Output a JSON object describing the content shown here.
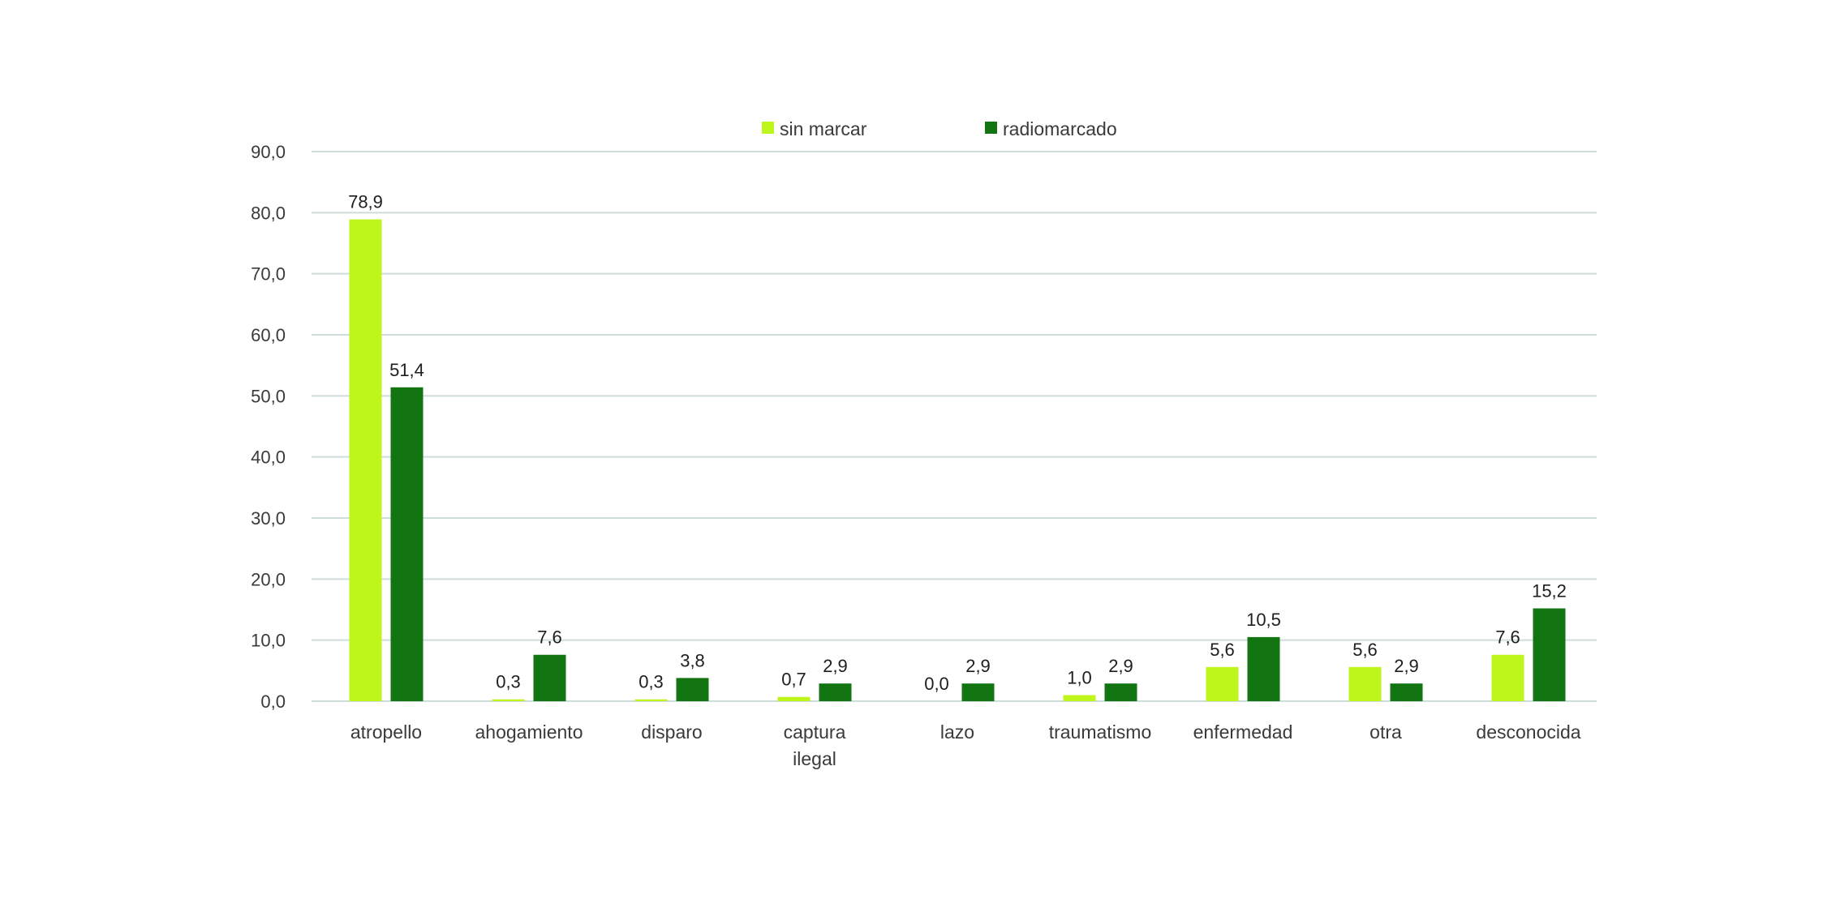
{
  "chart_data": {
    "type": "bar",
    "title": "",
    "xlabel": "",
    "ylabel": "",
    "ylim": [
      0,
      90
    ],
    "yticks": [
      "0,0",
      "10,0",
      "20,0",
      "30,0",
      "40,0",
      "50,0",
      "60,0",
      "70,0",
      "80,0",
      "90,0"
    ],
    "grid": true,
    "legend_position": "top-center",
    "categories": [
      [
        "atropello"
      ],
      [
        "ahogamiento"
      ],
      [
        "disparo"
      ],
      [
        "captura",
        "ilegal"
      ],
      [
        "lazo"
      ],
      [
        "traumatismo"
      ],
      [
        "enfermedad"
      ],
      [
        "otra"
      ],
      [
        "desconocida"
      ]
    ],
    "series": [
      {
        "name": "sin marcar",
        "color": "#bef51a",
        "values": [
          78.9,
          0.3,
          0.3,
          0.7,
          0.0,
          1.0,
          5.6,
          5.6,
          7.6
        ],
        "labels": [
          "78,9",
          "0,3",
          "0,3",
          "0,7",
          "0,0",
          "1,0",
          "5,6",
          "5,6",
          "7,6"
        ]
      },
      {
        "name": "radiomarcado",
        "color": "#137512",
        "values": [
          51.4,
          7.6,
          3.8,
          2.9,
          2.9,
          2.9,
          10.5,
          2.9,
          15.2
        ],
        "labels": [
          "51,4",
          "7,6",
          "3,8",
          "2,9",
          "2,9",
          "2,9",
          "10,5",
          "2,9",
          "15,2"
        ]
      }
    ]
  }
}
